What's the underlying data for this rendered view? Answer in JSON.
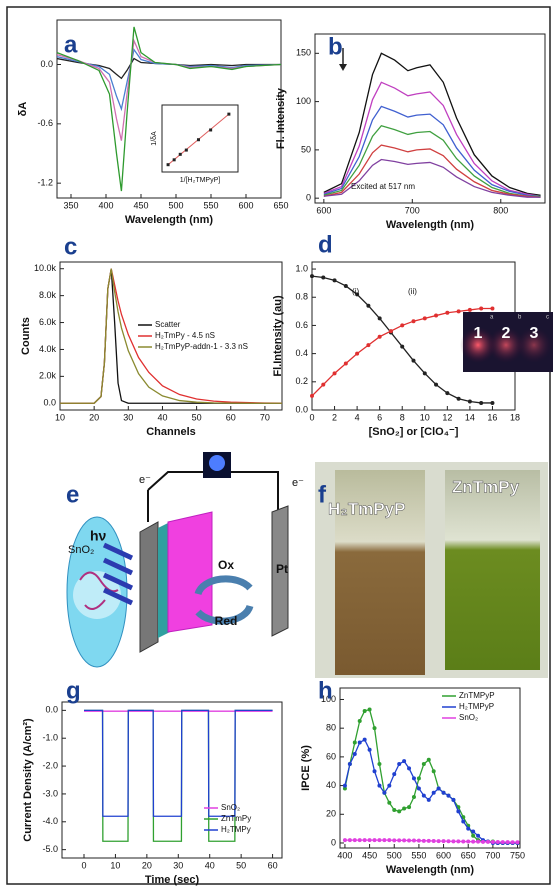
{
  "chart_data": [
    {
      "type": "line",
      "panel_label": "a",
      "x_label": "Wavelength (nm)",
      "y_label": "δA",
      "x": [
        330,
        360,
        390,
        405,
        415,
        422,
        430,
        440,
        450,
        470,
        500,
        520,
        550,
        580,
        600,
        650
      ],
      "xlim": [
        330,
        650
      ],
      "xticks": [
        350,
        400,
        450,
        500,
        550,
        600,
        650
      ],
      "ylim": [
        -1.35,
        0.45
      ],
      "yticks": [
        {
          "value": 0,
          "label": "0.0"
        },
        -0.6,
        -1.2
      ],
      "series": [
        {
          "color": "#222222",
          "values": [
            0.06,
            0.02,
            -0.01,
            -0.04,
            -0.1,
            -0.14,
            -0.06,
            0.06,
            0.02,
            0.01,
            0.0,
            -0.01,
            0.0,
            -0.01,
            0.0,
            0.0
          ]
        },
        {
          "color": "#4a7fd0",
          "values": [
            0.08,
            0.03,
            -0.02,
            -0.1,
            -0.32,
            -0.45,
            -0.18,
            0.15,
            0.05,
            0.01,
            0.0,
            -0.02,
            -0.01,
            -0.03,
            -0.01,
            0.0
          ]
        },
        {
          "color": "#d070b0",
          "values": [
            0.1,
            0.04,
            -0.04,
            -0.18,
            -0.55,
            -0.77,
            -0.3,
            0.24,
            0.08,
            0.02,
            0.0,
            -0.03,
            -0.02,
            -0.04,
            -0.02,
            0.0
          ]
        },
        {
          "color": "#2e9a2e",
          "values": [
            0.12,
            0.04,
            -0.06,
            -0.3,
            -0.9,
            -1.28,
            -0.5,
            0.38,
            0.12,
            0.02,
            0.0,
            -0.04,
            -0.02,
            -0.05,
            -0.02,
            0.0
          ]
        }
      ]
    },
    {
      "type": "scatter",
      "x_label": "1/[H₂TMPyP]",
      "y_label": "1/δA",
      "x": [
        20,
        40,
        60,
        80,
        120,
        160,
        220
      ],
      "values": [
        1.2,
        2.0,
        2.9,
        3.6,
        5.3,
        6.9,
        9.5
      ],
      "xlim": [
        0,
        250
      ],
      "ylim": [
        0,
        11
      ],
      "color": "#222222"
    },
    {
      "type": "line",
      "panel_label": "b",
      "x_label": "Wavelength (nm)",
      "y_label": "Fl. Intensity",
      "annotation": "Excited at 517 nm",
      "x": [
        600,
        620,
        640,
        655,
        665,
        680,
        695,
        705,
        720,
        735,
        750,
        770,
        790,
        810,
        830,
        845
      ],
      "xlim": [
        590,
        850
      ],
      "xticks": [
        600,
        700,
        800
      ],
      "ylim": [
        -5,
        170
      ],
      "yticks": [
        0,
        50,
        100,
        150
      ],
      "series": [
        {
          "color": "#111111",
          "values": [
            6,
            15,
            68,
            128,
            150,
            143,
            132,
            135,
            138,
            120,
            83,
            45,
            23,
            11,
            5,
            3
          ]
        },
        {
          "color": "#c040c0",
          "values": [
            5,
            12,
            54,
            102,
            120,
            114,
            106,
            108,
            110,
            96,
            66,
            36,
            18,
            8,
            4,
            2
          ]
        },
        {
          "color": "#4060d0",
          "values": [
            4,
            10,
            43,
            81,
            95,
            90,
            84,
            86,
            87,
            76,
            52,
            29,
            14,
            7,
            3,
            2
          ]
        },
        {
          "color": "#40a040",
          "values": [
            3,
            8,
            34,
            64,
            75,
            71,
            66,
            68,
            69,
            60,
            41,
            23,
            11,
            5,
            2,
            2
          ]
        },
        {
          "color": "#d04040",
          "values": [
            2,
            6,
            25,
            47,
            55,
            52,
            48,
            50,
            51,
            44,
            30,
            17,
            8,
            4,
            2,
            1
          ]
        },
        {
          "color": "#8040a0",
          "values": [
            2,
            4,
            18,
            34,
            40,
            38,
            35,
            36,
            37,
            32,
            22,
            12,
            6,
            3,
            1,
            1
          ]
        }
      ]
    },
    {
      "type": "line",
      "panel_label": "c",
      "x_label": "Channels",
      "y_label": "Counts",
      "legend": "center right",
      "x": [
        10,
        20,
        22,
        23,
        24,
        25,
        26,
        27,
        28,
        30,
        33,
        36,
        40,
        45,
        50,
        55,
        60,
        70,
        75
      ],
      "xlim": [
        10,
        75
      ],
      "xticks": [
        10,
        20,
        30,
        40,
        50,
        60,
        70
      ],
      "ylim": [
        -500,
        10500
      ],
      "yticks": [
        {
          "value": 0,
          "label": "0.0"
        },
        {
          "value": 2000,
          "label": "2.0k"
        },
        {
          "value": 4000,
          "label": "4.0k"
        },
        {
          "value": 6000,
          "label": "6.0k"
        },
        {
          "value": 8000,
          "label": "8.0k"
        },
        {
          "value": 10000,
          "label": "10.0k"
        }
      ],
      "series": [
        {
          "name": "Scatter",
          "color": "#111111",
          "values": [
            0,
            0,
            500,
            3000,
            8500,
            10000,
            6000,
            1500,
            200,
            0,
            0,
            0,
            0,
            0,
            0,
            0,
            0,
            0,
            0
          ]
        },
        {
          "name": "H₂TmPy - 4.5 nS",
          "color": "#e03030",
          "values": [
            0,
            0,
            500,
            3000,
            8500,
            10000,
            8800,
            7600,
            6600,
            5100,
            3400,
            2300,
            1300,
            650,
            320,
            160,
            80,
            20,
            10
          ]
        },
        {
          "name": "H₂TmPyP-addn-1 - 3.3 nS",
          "color": "#8a8a30",
          "values": [
            0,
            0,
            500,
            3000,
            8500,
            10000,
            8300,
            6800,
            5600,
            3900,
            2200,
            1200,
            550,
            200,
            80,
            30,
            10,
            0,
            0
          ]
        }
      ]
    },
    {
      "type": "line",
      "panel_label": "d",
      "x_label": "[SnO₂] or [ClO₄⁻]",
      "y_label": "Fl.Intensity (au)",
      "markers": true,
      "annotations": [
        "(i)",
        "(ii)"
      ],
      "inset_labels": [
        "1",
        "2",
        "3"
      ],
      "inset_letters": [
        "a",
        "b",
        "c"
      ],
      "x": [
        0,
        1,
        2,
        3,
        4,
        5,
        6,
        7,
        8,
        9,
        10,
        11,
        12,
        13,
        14,
        15,
        16
      ],
      "xlim": [
        0,
        18
      ],
      "xticks": [
        0,
        2,
        4,
        6,
        8,
        10,
        12,
        14,
        16,
        18
      ],
      "ylim": [
        0,
        1.05
      ],
      "yticks": [
        {
          "value": 0,
          "label": "0.0"
        },
        0.2,
        0.4,
        0.6,
        0.8,
        {
          "value": 1,
          "label": "1.0"
        }
      ],
      "series": [
        {
          "color": "#222222",
          "values": [
            0.95,
            0.94,
            0.92,
            0.88,
            0.82,
            0.74,
            0.65,
            0.55,
            0.45,
            0.35,
            0.26,
            0.18,
            0.12,
            0.08,
            0.06,
            0.05,
            0.05
          ]
        },
        {
          "color": "#e03030",
          "values": [
            0.1,
            0.18,
            0.26,
            0.33,
            0.4,
            0.46,
            0.52,
            0.56,
            0.6,
            0.63,
            0.65,
            0.67,
            0.69,
            0.7,
            0.71,
            0.72,
            0.72
          ]
        }
      ]
    },
    {
      "type": "line",
      "panel_label": "g",
      "x_label": "Time (sec)",
      "y_label": "Current Density (A/cm²)",
      "legend": "lower right",
      "x": [
        0,
        5.9,
        6,
        14,
        14.1,
        22,
        22.1,
        31,
        31.1,
        39.6,
        39.7,
        48,
        48.1,
        60
      ],
      "xlim": [
        -7,
        63
      ],
      "xticks": [
        0,
        10,
        20,
        30,
        40,
        50,
        60
      ],
      "ylim": [
        -5.3,
        0.3
      ],
      "yticks": [
        {
          "value": 0,
          "label": "0.0"
        },
        {
          "value": -1,
          "label": "-1.0"
        },
        {
          "value": -2,
          "label": "-2.0"
        },
        {
          "value": -3,
          "label": "-3.0"
        },
        {
          "value": -4,
          "label": "-4.0"
        },
        {
          "value": -5,
          "label": "-5.0"
        }
      ],
      "series": [
        {
          "name": "SnO₂",
          "color": "#e040e0",
          "values": [
            -0.03,
            -0.03,
            -0.03,
            -0.03,
            -0.03,
            -0.03,
            -0.03,
            -0.03,
            -0.03,
            -0.03,
            -0.03,
            -0.03,
            -0.03,
            -0.03
          ]
        },
        {
          "name": "ZnTmPy",
          "color": "#30a030",
          "values": [
            0,
            0,
            -4.7,
            -4.7,
            0,
            0,
            -4.7,
            -4.7,
            0,
            0,
            -4.7,
            -4.7,
            0,
            0
          ]
        },
        {
          "name": "H₂TMPy",
          "color": "#2040d0",
          "values": [
            0,
            0,
            -3.8,
            -3.8,
            0,
            0,
            -3.8,
            -3.8,
            0,
            0,
            -3.8,
            -3.8,
            0,
            0
          ]
        }
      ]
    },
    {
      "type": "line",
      "panel_label": "h",
      "x_label": "Wavelength (nm)",
      "y_label": "IPCE (%)",
      "legend": "upper right",
      "markers": true,
      "x": [
        400,
        410,
        420,
        430,
        440,
        450,
        460,
        470,
        480,
        490,
        500,
        510,
        520,
        530,
        540,
        550,
        560,
        570,
        580,
        590,
        600,
        610,
        620,
        630,
        640,
        650,
        660,
        670,
        680,
        690,
        700,
        710,
        720,
        730,
        740,
        750
      ],
      "xlim": [
        390,
        755
      ],
      "xticks": [
        400,
        450,
        500,
        550,
        600,
        650,
        700,
        750
      ],
      "ylim": [
        -3.5,
        108
      ],
      "yticks": [
        0,
        20,
        40,
        60,
        80,
        100
      ],
      "series": [
        {
          "name": "ZnTMPyP",
          "color": "#30a030",
          "values": [
            38,
            55,
            70,
            85,
            92,
            93,
            80,
            55,
            35,
            28,
            23,
            22,
            24,
            25,
            32,
            45,
            55,
            58,
            50,
            38,
            35,
            33,
            30,
            25,
            18,
            12,
            5,
            2,
            1,
            1,
            1,
            0,
            0,
            0,
            0,
            0
          ]
        },
        {
          "name": "H₂TMPyP",
          "color": "#2040d0",
          "values": [
            40,
            55,
            62,
            70,
            72,
            65,
            50,
            40,
            35,
            40,
            48,
            55,
            57,
            52,
            45,
            38,
            33,
            30,
            35,
            38,
            35,
            33,
            30,
            22,
            15,
            10,
            8,
            5,
            2,
            1,
            0,
            0,
            0,
            0,
            0,
            0
          ]
        },
        {
          "name": "SnO₂",
          "color": "#e040e0",
          "values": [
            2,
            2,
            2,
            2,
            2,
            2,
            2,
            2,
            2,
            2,
            1.8,
            1.8,
            1.8,
            1.7,
            1.7,
            1.6,
            1.5,
            1.5,
            1.4,
            1.3,
            1.3,
            1.2,
            1.1,
            1.1,
            1,
            1,
            0.9,
            0.9,
            0.8,
            0.8,
            0.7,
            0.7,
            0.6,
            0.6,
            0.5,
            0.5
          ]
        }
      ]
    }
  ],
  "panel_e": {
    "label": "e",
    "hv": "hν",
    "electrode": "SnO₂",
    "electron_left": "e⁻",
    "electron_right": "e⁻",
    "ox": "Ox",
    "red": "Red",
    "counter": "Pt"
  },
  "panel_f": {
    "label": "f",
    "captions": [
      "H₂TmPyP",
      "ZnTmPy"
    ]
  }
}
